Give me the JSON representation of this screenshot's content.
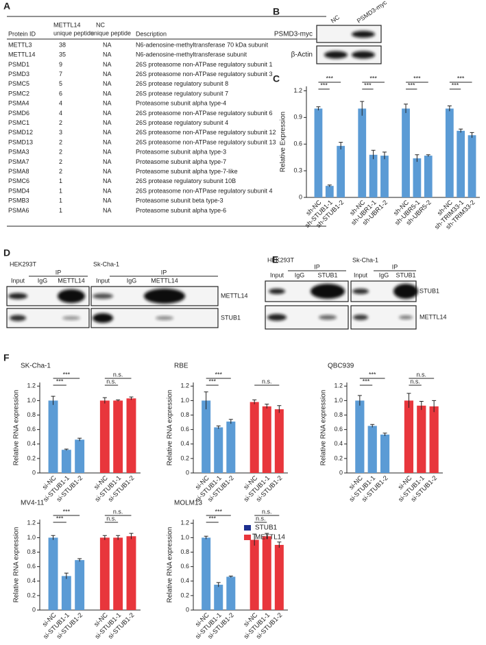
{
  "panels": [
    "A",
    "B",
    "C",
    "D",
    "E",
    "F"
  ],
  "table": {
    "header": [
      [
        "Protein ID"
      ],
      [
        "METTL14",
        "unique peptide"
      ],
      [
        "NC",
        "unique peptide"
      ],
      [
        "Description"
      ]
    ],
    "rows": [
      [
        "METTL3",
        38,
        "NA",
        "N6-adenosine-methyltransferase 70 kDa subunit"
      ],
      [
        "METTL14",
        35,
        "NA",
        "N6-adenosine-methyltransferase subunit"
      ],
      [
        "PSMD1",
        9,
        "NA",
        "26S proteasome non-ATPase regulatory subunit 1"
      ],
      [
        "PSMD3",
        7,
        "NA",
        "26S proteasome non-ATPase regulatory subunit 3"
      ],
      [
        "PSMC5",
        5,
        "NA",
        "26S protease regulatory subunit 8"
      ],
      [
        "PSMC2",
        6,
        "NA",
        "26S protease regulatory subunit 7"
      ],
      [
        "PSMA4",
        4,
        "NA",
        "Proteasome subunit alpha type-4"
      ],
      [
        "PSMD6",
        4,
        "NA",
        "26S proteasome non-ATPase regulatory subunit 6"
      ],
      [
        "PSMC1",
        2,
        "NA",
        "26S protease regulatory subunit 4"
      ],
      [
        "PSMD12",
        3,
        "NA",
        "26S proteasome non-ATPase regulatory subunit 12"
      ],
      [
        "PSMD13",
        2,
        "NA",
        "26S proteasome non-ATPase regulatory subunit 13"
      ],
      [
        "PSMA3",
        2,
        "NA",
        "Proteasome subunit alpha type-3"
      ],
      [
        "PSMA7",
        2,
        "NA",
        "Proteasome subunit alpha type-7"
      ],
      [
        "PSMA8",
        2,
        "NA",
        "Proteasome subunit alpha type-7-like"
      ],
      [
        "PSMC6",
        1,
        "NA",
        "26S protease regulatory subunit 10B"
      ],
      [
        "PSMD4",
        1,
        "NA",
        "26S proteasome non-ATPase regulatory subunit 4"
      ],
      [
        "PSMB3",
        1,
        "NA",
        "Proteasome subunit beta type-3"
      ],
      [
        "PSMA6",
        1,
        "NA",
        "Proteasome subunit alpha type-6"
      ]
    ]
  },
  "blot_b": {
    "lanes": [
      "NC",
      "PSMD3-myc"
    ],
    "rows": [
      "PSMD3-myc",
      "β-Actin"
    ]
  },
  "blot_d": {
    "groups": [
      {
        "cell": "HEK293T",
        "ip": "IP",
        "lanes": [
          "Input",
          "IgG",
          "METTL14"
        ]
      },
      {
        "cell": "Sk-Cha-1",
        "ip": "IP",
        "lanes": [
          "Input",
          "IgG",
          "METTL14"
        ]
      }
    ],
    "rows": [
      "METTL14",
      "STUB1"
    ]
  },
  "blot_e": {
    "groups": [
      {
        "cell": "HEK293T",
        "ip": "IP",
        "lanes": [
          "Input",
          "IgG",
          "STUB1"
        ]
      },
      {
        "cell": "Sk-Cha-1",
        "ip": "IP",
        "lanes": [
          "Input",
          "IgG",
          "STUB1"
        ]
      }
    ],
    "rows": [
      "STUB1",
      "METTL14"
    ]
  },
  "legend": [
    {
      "name": "STUB1",
      "color": "#1c2f8f"
    },
    {
      "name": "METTL14",
      "color": "#e8363c"
    }
  ],
  "chart_data": [
    {
      "type": "bar",
      "y_label": "Relative Expression",
      "color": "#5b9bd5",
      "categories": [
        "sh-NC",
        "sh-STUB1-1",
        "sh-STUB1-2",
        "sh-NC",
        "sh-UBR1-1",
        "sh-UBR1-2",
        "sh-NC",
        "sh-UBR5-1",
        "sh-UBR5-2",
        "sh-NC",
        "sh-TRIM33-1",
        "sh-TRIM33-2"
      ],
      "values": [
        1.0,
        0.13,
        0.58,
        1.0,
        0.48,
        0.47,
        1.0,
        0.44,
        0.47,
        1.0,
        0.75,
        0.7
      ],
      "errors": [
        0.02,
        0.01,
        0.04,
        0.08,
        0.05,
        0.04,
        0.05,
        0.04,
        0.01,
        0.03,
        0.02,
        0.03
      ],
      "ylim": [
        0,
        1.25
      ],
      "yticks": [
        0,
        0.3,
        0.6,
        0.9,
        1.2
      ],
      "significance": [
        {
          "label": "***",
          "pair": [
            0,
            1
          ]
        },
        {
          "label": "***",
          "pair": [
            0,
            2
          ]
        },
        {
          "label": "***",
          "pair": [
            3,
            4
          ]
        },
        {
          "label": "***",
          "pair": [
            3,
            5
          ]
        },
        {
          "label": "***",
          "pair": [
            6,
            7
          ]
        },
        {
          "label": "***",
          "pair": [
            6,
            8
          ]
        },
        {
          "label": "***",
          "pair": [
            9,
            10
          ]
        },
        {
          "label": "***",
          "pair": [
            9,
            11
          ]
        }
      ]
    },
    {
      "type": "bar",
      "title": "SK-Cha-1",
      "y_label": "Relative RNA expression",
      "categories": [
        "si-NC",
        "si-STUB1-1",
        "si-STUB1-2",
        "si-NC",
        "si-STUB1-1",
        "si-STUB1-2"
      ],
      "values": [
        1.0,
        0.32,
        0.46,
        1.0,
        1.0,
        1.03
      ],
      "errors": [
        0.06,
        0.01,
        0.02,
        0.04,
        0.01,
        0.02
      ],
      "colors": [
        "#5b9bd5",
        "#5b9bd5",
        "#5b9bd5",
        "#e8363c",
        "#e8363c",
        "#e8363c"
      ],
      "ylim": [
        0,
        1.25
      ],
      "yticks": [
        0,
        0.2,
        0.4,
        0.6,
        0.8,
        {
          "value": 1,
          "label": "1.0"
        },
        1.2
      ],
      "significance": [
        {
          "label": "***",
          "pair": [
            0,
            1
          ]
        },
        {
          "label": "***",
          "pair": [
            0,
            2
          ]
        },
        {
          "label": "n.s.",
          "pair": [
            3,
            4
          ]
        },
        {
          "label": "n.s.",
          "pair": [
            3,
            5
          ]
        }
      ]
    },
    {
      "type": "bar",
      "title": "RBE",
      "y_label": "Relative RNA expression",
      "categories": [
        "si-NC",
        "si-STUB1-1",
        "si-STUB1-2",
        "si-NC",
        "si-STUB1-1",
        "si-STUB1-2"
      ],
      "values": [
        1.0,
        0.63,
        0.71,
        0.98,
        0.92,
        0.88
      ],
      "errors": [
        0.12,
        0.02,
        0.03,
        0.03,
        0.03,
        0.05
      ],
      "colors": [
        "#5b9bd5",
        "#5b9bd5",
        "#5b9bd5",
        "#e8363c",
        "#e8363c",
        "#e8363c"
      ],
      "ylim": [
        0,
        1.25
      ],
      "yticks": [
        0,
        0.2,
        0.4,
        0.6,
        0.8,
        {
          "value": 1,
          "label": "1.0"
        },
        1.2
      ],
      "significance": [
        {
          "label": "***",
          "pair": [
            0,
            1
          ]
        },
        {
          "label": "***",
          "pair": [
            0,
            2
          ]
        },
        {
          "label": "n.s.",
          "pair": [
            3,
            5
          ]
        }
      ]
    },
    {
      "type": "bar",
      "title": "QBC939",
      "y_label": "Relative RNA expression",
      "categories": [
        "si-NC",
        "si-STUB1-1",
        "si-STUB1-2",
        "si-NC",
        "si-STUB1-1",
        "si-STUB1-2"
      ],
      "values": [
        1.0,
        0.65,
        0.53,
        1.0,
        0.93,
        0.92
      ],
      "errors": [
        0.07,
        0.02,
        0.02,
        0.1,
        0.06,
        0.08
      ],
      "colors": [
        "#5b9bd5",
        "#5b9bd5",
        "#5b9bd5",
        "#e8363c",
        "#e8363c",
        "#e8363c"
      ],
      "ylim": [
        0,
        1.25
      ],
      "yticks": [
        0,
        0.2,
        0.4,
        0.6,
        0.8,
        {
          "value": 1,
          "label": "1.0"
        },
        1.2
      ],
      "significance": [
        {
          "label": "***",
          "pair": [
            0,
            1
          ]
        },
        {
          "label": "***",
          "pair": [
            0,
            2
          ]
        },
        {
          "label": "n.s.",
          "pair": [
            3,
            4
          ]
        },
        {
          "label": "n.s.",
          "pair": [
            3,
            5
          ]
        }
      ]
    },
    {
      "type": "bar",
      "title": "MV4-11",
      "y_label": "Relative RNA expression",
      "categories": [
        "si-NC",
        "si-STUB1-1",
        "si-STUB1-2",
        "si-NC",
        "si-STUB1-1",
        "si-STUB1-2"
      ],
      "values": [
        1.0,
        0.47,
        0.69,
        1.0,
        1.0,
        1.02
      ],
      "errors": [
        0.03,
        0.04,
        0.02,
        0.03,
        0.03,
        0.04
      ],
      "colors": [
        "#5b9bd5",
        "#5b9bd5",
        "#5b9bd5",
        "#e8363c",
        "#e8363c",
        "#e8363c"
      ],
      "ylim": [
        0,
        1.25
      ],
      "yticks": [
        0,
        0.2,
        0.4,
        0.6,
        0.8,
        {
          "value": 1,
          "label": "1.0"
        },
        1.2
      ],
      "significance": [
        {
          "label": "***",
          "pair": [
            0,
            1
          ]
        },
        {
          "label": "***",
          "pair": [
            0,
            2
          ]
        },
        {
          "label": "n.s.",
          "pair": [
            3,
            4
          ]
        },
        {
          "label": "n.s.",
          "pair": [
            3,
            5
          ]
        }
      ]
    },
    {
      "type": "bar",
      "title": "MOLM13",
      "y_label": "Relative RNA expression",
      "categories": [
        "si-NC",
        "si-STUB1-1",
        "si-STUB1-2",
        "si-NC",
        "si-STUB1-1",
        "si-STUB1-2"
      ],
      "values": [
        1.0,
        0.35,
        0.46,
        0.97,
        1.02,
        0.9
      ],
      "errors": [
        0.02,
        0.03,
        0.01,
        0.08,
        0.04,
        0.04
      ],
      "colors": [
        "#5b9bd5",
        "#5b9bd5",
        "#5b9bd5",
        "#e8363c",
        "#e8363c",
        "#e8363c"
      ],
      "ylim": [
        0,
        1.25
      ],
      "yticks": [
        0,
        0.2,
        0.4,
        0.6,
        0.8,
        {
          "value": 1,
          "label": "1.0"
        },
        1.2
      ],
      "significance": [
        {
          "label": "***",
          "pair": [
            0,
            1
          ]
        },
        {
          "label": "***",
          "pair": [
            0,
            2
          ]
        },
        {
          "label": "n.s.",
          "pair": [
            3,
            4
          ]
        },
        {
          "label": "n.s.",
          "pair": [
            3,
            5
          ]
        }
      ]
    }
  ]
}
